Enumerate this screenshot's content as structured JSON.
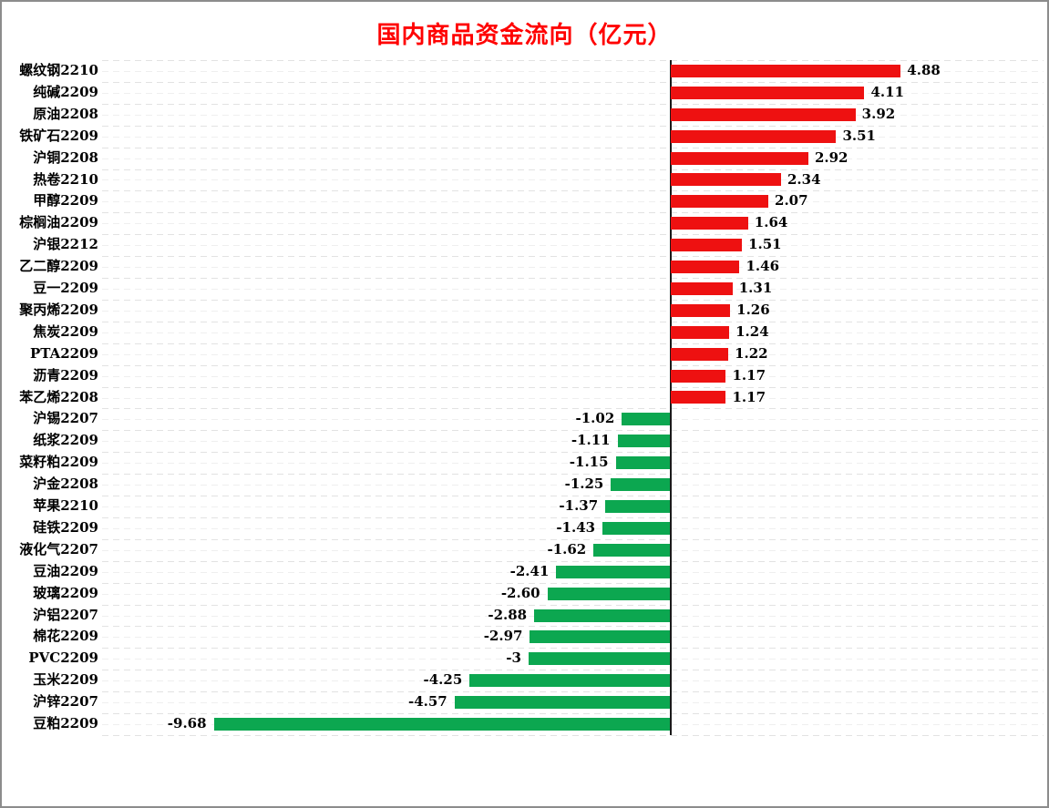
{
  "title": "国内商品资金流向（亿元）",
  "colors": {
    "positive_bar": "#ee1111",
    "negative_bar": "#0ca750",
    "title_text": "#ff0000",
    "axis_line": "#1a1a1a",
    "grid_line_dark": "#e2e2e2",
    "grid_line_light": "#efefef",
    "label_text": "#000000",
    "frame_border": "#8c8c8c"
  },
  "chart_data": {
    "type": "bar",
    "orientation": "horizontal",
    "title": "国内商品资金流向（亿元）",
    "unit": "亿元",
    "legend": "none",
    "grid": "dashed-horizontal",
    "xlim": [
      -12.05,
      7.85
    ],
    "categories": [
      "螺纹钢2210",
      "纯碱2209",
      "原油2208",
      "铁矿石2209",
      "沪铜2208",
      "热卷2210",
      "甲醇2209",
      "棕榈油2209",
      "沪银2212",
      "乙二醇2209",
      "豆一2209",
      "聚丙烯2209",
      "焦炭2209",
      "PTA2209",
      "沥青2209",
      "苯乙烯2208",
      "沪锡2207",
      "纸浆2209",
      "菜籽粕2209",
      "沪金2208",
      "苹果2210",
      "硅铁2209",
      "液化气2207",
      "豆油2209",
      "玻璃2209",
      "沪铝2207",
      "棉花2209",
      "PVC2209",
      "玉米2209",
      "沪锌2207",
      "豆粕2209"
    ],
    "values": [
      4.88,
      4.11,
      3.92,
      3.51,
      2.92,
      2.34,
      2.07,
      1.64,
      1.51,
      1.46,
      1.31,
      1.26,
      1.24,
      1.22,
      1.17,
      1.17,
      -1.02,
      -1.11,
      -1.15,
      -1.25,
      -1.37,
      -1.43,
      -1.62,
      -2.41,
      -2.6,
      -2.88,
      -2.97,
      -3,
      -4.25,
      -4.57,
      -9.68
    ],
    "value_labels": [
      "4.88",
      "4.11",
      "3.92",
      "3.51",
      "2.92",
      "2.34",
      "2.07",
      "1.64",
      "1.51",
      "1.46",
      "1.31",
      "1.26",
      "1.24",
      "1.22",
      "1.17",
      "1.17",
      "-1.02",
      "-1.11",
      "-1.15",
      "-1.25",
      "-1.37",
      "-1.43",
      "-1.62",
      "-2.41",
      "-2.60",
      "-2.88",
      "-2.97",
      "-3",
      "-4.25",
      "-4.57",
      "-9.68"
    ]
  }
}
